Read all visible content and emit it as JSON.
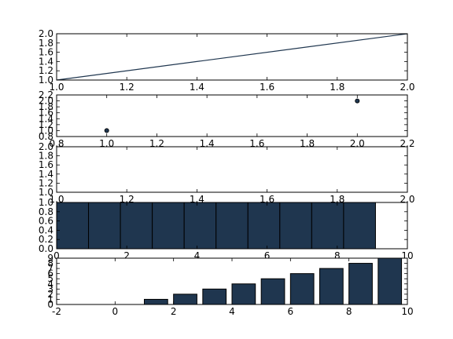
{
  "colors": {
    "series": "#1f364f",
    "edge": "#000000",
    "background": "#ffffff"
  },
  "chart_data": [
    {
      "type": "line",
      "x": [
        1.0,
        2.0
      ],
      "y": [
        1.0,
        2.0
      ],
      "xlim": [
        1.0,
        2.0
      ],
      "ylim": [
        1.0,
        2.0
      ],
      "xticks": [
        "1.0",
        "1.2",
        "1.4",
        "1.6",
        "1.8",
        "2.0"
      ],
      "yticks": [
        "1.0",
        "1.2",
        "1.4",
        "1.6",
        "1.8",
        "2.0"
      ],
      "grid": false
    },
    {
      "type": "scatter",
      "x": [
        1.0,
        2.0
      ],
      "y": [
        1.0,
        2.0
      ],
      "xlim": [
        0.8,
        2.2
      ],
      "ylim": [
        0.8,
        2.2
      ],
      "xticks": [
        "0.8",
        "1.0",
        "1.2",
        "1.4",
        "1.6",
        "1.8",
        "2.0",
        "2.2"
      ],
      "yticks": [
        "0.8",
        "1.0",
        "1.2",
        "1.4",
        "1.6",
        "1.8",
        "2.0",
        "2.2"
      ],
      "grid": false
    },
    {
      "type": "line",
      "x": [],
      "y": [],
      "xlim": [
        1.0,
        2.0
      ],
      "ylim": [
        1.0,
        2.0
      ],
      "xticks": [
        "1.0",
        "1.2",
        "1.4",
        "1.6",
        "1.8",
        "2.0"
      ],
      "yticks": [
        "1.0",
        "1.2",
        "1.4",
        "1.6",
        "1.8",
        "2.0"
      ],
      "grid": false
    },
    {
      "type": "bar",
      "x": [
        0,
        1,
        2,
        3,
        4,
        5,
        6,
        7,
        8,
        9
      ],
      "values": [
        1,
        1,
        1,
        1,
        1,
        1,
        1,
        1,
        1,
        1
      ],
      "bar_width": 1.0,
      "xlim": [
        0,
        11
      ],
      "ylim": [
        0.0,
        1.0
      ],
      "xticks": [
        "0",
        "2",
        "4",
        "6",
        "8",
        "10"
      ],
      "yticks": [
        "0.0",
        "0.2",
        "0.4",
        "0.6",
        "0.8",
        "1.0"
      ],
      "grid": false
    },
    {
      "type": "bar",
      "x": [
        0,
        1,
        2,
        3,
        4,
        5,
        6,
        7,
        8,
        9
      ],
      "values": [
        0,
        1,
        2,
        3,
        4,
        5,
        6,
        7,
        8,
        9
      ],
      "bar_width": 0.8,
      "xlim": [
        -2,
        10
      ],
      "ylim": [
        0,
        9
      ],
      "xticks": [
        "-2",
        "0",
        "2",
        "4",
        "6",
        "8",
        "10"
      ],
      "yticks": [
        "0",
        "1",
        "2",
        "3",
        "4",
        "5",
        "6",
        "7",
        "8",
        "9"
      ],
      "grid": false
    }
  ]
}
